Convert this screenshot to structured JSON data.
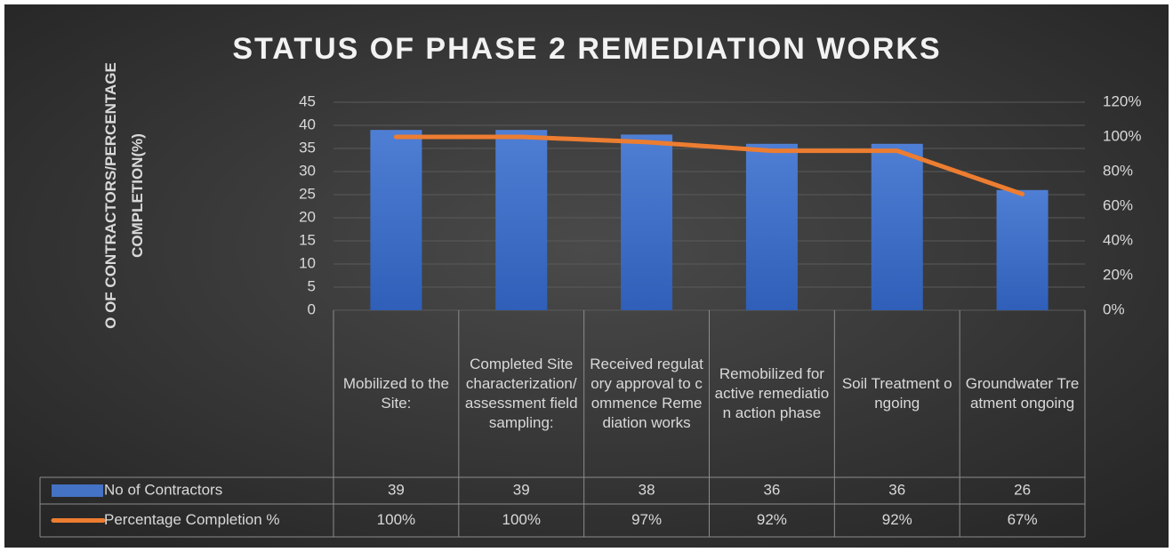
{
  "chart_data": {
    "type": "bar-line-table",
    "title": "STATUS OF PHASE 2 REMEDIATION WORKS",
    "ylabel": "O OF CONTRACTORS/PERCENTAGE COMPLETION(%)",
    "categories": [
      "Mobilized to the Site:",
      "Completed Site characterization/assessment field sampling:",
      "Received regulatory approval to commence Remediation works",
      "Remobilized for active remediation action phase",
      "Soil Treatment ongoing",
      "Groundwater Treatment ongoing"
    ],
    "series": [
      {
        "name": "No of Contractors",
        "color": "#4472c4",
        "type": "bar",
        "values": [
          39,
          39,
          38,
          36,
          36,
          26
        ]
      },
      {
        "name": "Percentage Completion %",
        "color": "#ed7d31",
        "type": "line",
        "axis": "y2",
        "values": [
          100,
          100,
          97,
          92,
          92,
          67
        ],
        "value_labels": [
          "100%",
          "100%",
          "97%",
          "92%",
          "92%",
          "67%"
        ]
      }
    ],
    "ylim": [
      0,
      45
    ],
    "yticks": [
      0,
      5,
      10,
      15,
      20,
      25,
      30,
      35,
      40,
      45
    ],
    "y2lim": [
      0,
      120
    ],
    "y2ticks": [
      {
        "value": 0,
        "label": "0%"
      },
      {
        "value": 20,
        "label": "20%"
      },
      {
        "value": 40,
        "label": "40%"
      },
      {
        "value": 60,
        "label": "60%"
      },
      {
        "value": 80,
        "label": "80%"
      },
      {
        "value": 100,
        "label": "100%"
      },
      {
        "value": 120,
        "label": "120%"
      }
    ],
    "grid": true
  }
}
